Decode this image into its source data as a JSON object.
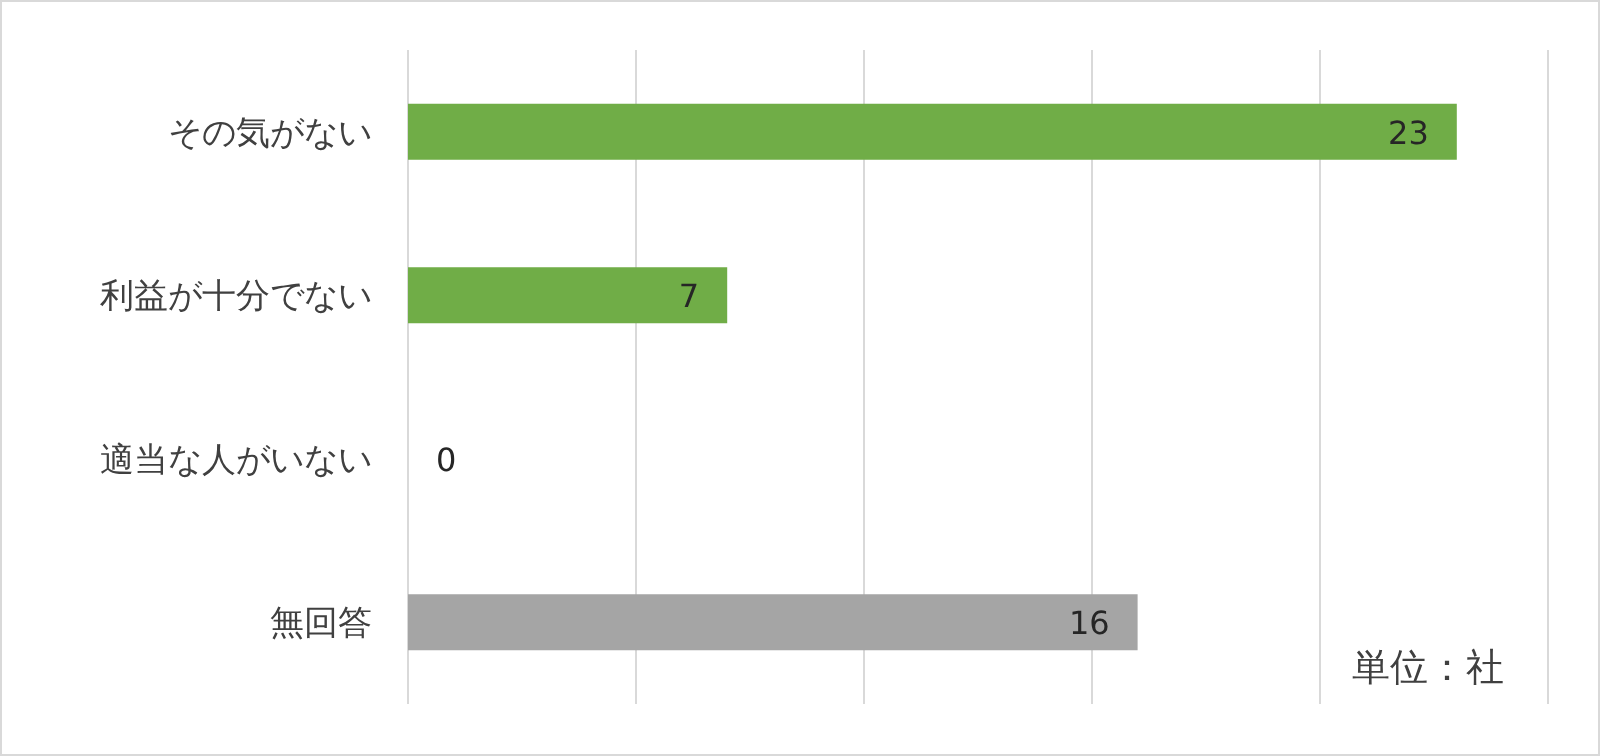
{
  "chart_data": {
    "type": "bar",
    "orientation": "horizontal",
    "categories": [
      "その気がない",
      "利益が十分でない",
      "適当な人がいない",
      "無回答"
    ],
    "values": [
      23,
      7,
      0,
      16
    ],
    "colors": [
      "#70ad47",
      "#70ad47",
      "#70ad47",
      "#a5a5a5"
    ],
    "xlim": [
      0,
      25
    ],
    "xticks": [
      {
        "value": 0,
        "label": null
      },
      {
        "value": 5,
        "label": null
      },
      {
        "value": 10,
        "label": null
      },
      {
        "value": 15,
        "label": null
      },
      {
        "value": 20,
        "label": null
      },
      {
        "value": 25,
        "label": null
      }
    ],
    "tick_labels": "y",
    "grid": "x",
    "data_labels": true,
    "annotations": [
      "単位：社"
    ]
  }
}
